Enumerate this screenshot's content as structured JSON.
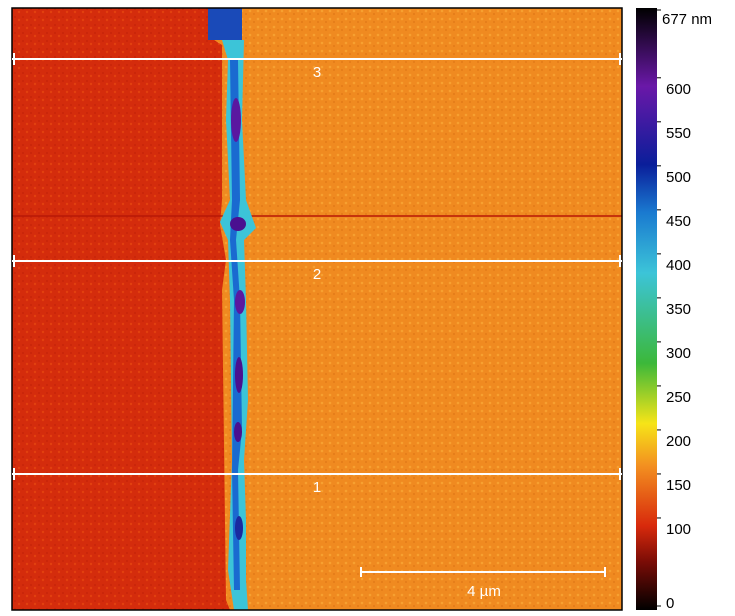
{
  "image": {
    "profiles": [
      {
        "label": "3"
      },
      {
        "label": "2"
      },
      {
        "label": "1"
      }
    ],
    "scale_bar": "4 µm"
  },
  "colorbar": {
    "range": [
      0,
      677
    ],
    "ticks": [
      0,
      100,
      150,
      200,
      250,
      300,
      350,
      400,
      450,
      500,
      550,
      600,
      {
        "value": 677,
        "label": "677 nm"
      }
    ]
  }
}
